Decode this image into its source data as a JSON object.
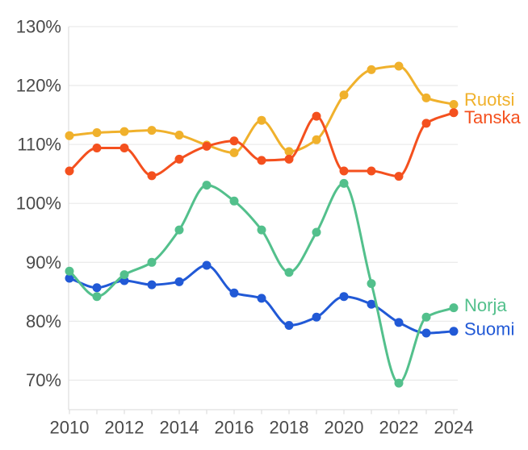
{
  "chart_data": {
    "type": "line",
    "title": "",
    "x": [
      2010,
      2011,
      2012,
      2013,
      2014,
      2015,
      2016,
      2017,
      2018,
      2019,
      2020,
      2021,
      2022,
      2023,
      2024
    ],
    "series": [
      {
        "name": "Ruotsi",
        "color": "#F0B12C",
        "values": [
          111.5,
          112.0,
          112.2,
          112.4,
          111.6,
          109.9,
          108.6,
          114.1,
          108.8,
          110.8,
          118.4,
          122.7,
          123.3,
          117.9,
          116.8
        ]
      },
      {
        "name": "Tanska",
        "color": "#F4501E",
        "values": [
          105.5,
          109.4,
          109.4,
          104.7,
          107.5,
          109.7,
          110.6,
          107.3,
          107.5,
          114.8,
          105.5,
          105.5,
          104.6,
          113.6,
          115.4
        ]
      },
      {
        "name": "Norja",
        "color": "#53C08C",
        "values": [
          88.5,
          84.2,
          87.9,
          90.0,
          95.5,
          103.1,
          100.4,
          95.5,
          88.3,
          95.1,
          103.4,
          86.4,
          69.5,
          80.7,
          82.3
        ]
      },
      {
        "name": "Suomi",
        "color": "#2159D6",
        "values": [
          87.3,
          85.7,
          86.9,
          86.2,
          86.7,
          89.5,
          84.8,
          83.9,
          79.3,
          80.7,
          84.2,
          82.9,
          79.8,
          78.0,
          78.3
        ]
      }
    ],
    "ylim": [
      65,
      130
    ],
    "yticks": [
      70,
      80,
      90,
      100,
      110,
      120,
      130
    ],
    "ytick_labels": [
      "70%",
      "80%",
      "90%",
      "100%",
      "110%",
      "120%",
      "130%"
    ],
    "xtick_years": [
      2010,
      2012,
      2014,
      2016,
      2018,
      2020,
      2022,
      2024
    ],
    "xtick_labels": [
      "2010",
      "2012",
      "2014",
      "2016",
      "2018",
      "2020",
      "2022",
      "2024"
    ],
    "minor_ticks_every_year": true,
    "grid": "horizontal",
    "curve": "monotone",
    "legend_position": "end-of-line-labels"
  },
  "styles": {
    "background": "#ffffff",
    "grid_color": "#ebebeb",
    "axis_color": "#e0e0e0",
    "tick_label_color": "#4a4a4a"
  }
}
